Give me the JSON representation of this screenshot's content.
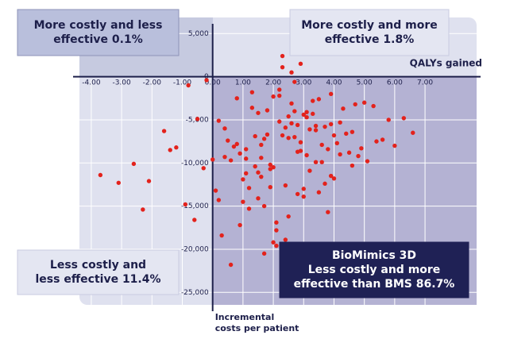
{
  "chart_data": {
    "type": "scatter",
    "x_label": "QALYs gained",
    "y_label": [
      "Incremental",
      "costs per patient"
    ],
    "color": "#e3221c",
    "xlim": [
      -4.6,
      8.7
    ],
    "ylim": [
      -27000,
      6500
    ],
    "xticks": [
      {
        "value": -4,
        "label": "-4.00"
      },
      {
        "value": -3,
        "label": "-3.00"
      },
      {
        "value": -2,
        "label": "-2.00"
      },
      {
        "value": -1,
        "label": "-1.00"
      },
      {
        "value": 0,
        "label": "0.00"
      },
      {
        "value": 1,
        "label": "1.00"
      },
      {
        "value": 2,
        "label": "2.00"
      },
      {
        "value": 3,
        "label": "3.00"
      },
      {
        "value": 4,
        "label": "4.00"
      },
      {
        "value": 5,
        "label": "5.00"
      },
      {
        "value": 6,
        "label": "6.00"
      },
      {
        "value": 7,
        "label": "7.00"
      }
    ],
    "yticks": [
      {
        "value": 5000,
        "label": "5,000"
      },
      0,
      {
        "value": -5000,
        "label": "-5,000"
      },
      {
        "value": -10000,
        "label": "-10,000"
      },
      {
        "value": -15000,
        "label": "-15,000"
      },
      {
        "value": -20000,
        "label": "-20,000"
      },
      {
        "value": -25000,
        "label": "-25,000"
      }
    ],
    "grid": true,
    "annotations": [
      {
        "lines": [
          "More costly and less",
          "effective"
        ],
        "pct": "0.1%"
      },
      {
        "lines": [
          "More costly and more",
          "effective"
        ],
        "pct": "1.8%"
      },
      {
        "lines": [
          "Less costly and",
          "less effective"
        ],
        "pct": "11.4%"
      },
      {
        "lines": [
          "BioMimics 3D",
          "Less costly and more",
          "effective than BMS"
        ],
        "pct": "86.7%"
      }
    ],
    "x": [
      2.3,
      1.5,
      3.1,
      0.8,
      2.9,
      4.2,
      1.1,
      2.6,
      3.8,
      0.4,
      1.9,
      2.2,
      3.4,
      5.1,
      -0.5,
      1.7,
      2.8,
      3.3,
      0.9,
      4.6,
      2.0,
      1.3,
      3.6,
      2.5,
      -1.2,
      0.2,
      4.0,
      2.7,
      1.6,
      3.0,
      5.6,
      -2.1,
      1.0,
      2.4,
      3.9,
      0.6,
      2.1,
      4.4,
      1.8,
      3.2,
      -0.8,
      2.9,
      1.4,
      3.7,
      6.3,
      0.1,
      2.6,
      4.8,
      1.2,
      3.5,
      -1.6,
      2.0,
      0.7,
      3.1,
      4.1,
      1.9,
      2.3,
      5.3,
      -0.3,
      1.5,
      2.8,
      3.9,
      0.5,
      2.2,
      4.5,
      1.7,
      3.4,
      -2.6,
      2.5,
      1.1,
      3.0,
      5.8,
      0.3,
      2.7,
      4.3,
      1.6,
      3.6,
      -0.9,
      2.1,
      0.8,
      3.3,
      4.9,
      1.3,
      2.4,
      -3.1,
      1.8,
      3.8,
      2.6,
      0.0,
      4.7,
      2.9,
      1.4,
      3.2,
      5.4,
      -1.4,
      2.2,
      0.6,
      3.5,
      6.6,
      1.0,
      2.0,
      4.2,
      1.7,
      3.1,
      -0.6,
      2.8,
      0.4,
      3.7,
      5.0,
      1.2,
      2.5,
      -2.3,
      1.9,
      4.0,
      2.3,
      0.9,
      3.4,
      6.0,
      1.5,
      2.7,
      -0.2,
      3.0,
      4.6,
      1.6,
      2.1,
      -3.7,
      0.2,
      3.9,
      2.4,
      1.1
    ],
    "values": [
      -6800,
      -4200,
      -9100,
      -2500,
      -7600,
      -5300,
      -11200,
      -3100,
      -8400,
      -6000,
      -12800,
      -1500,
      -5700,
      -9800,
      -4900,
      -7200,
      -13600,
      -2800,
      -8900,
      -6400,
      -10500,
      -3600,
      -7900,
      -16200,
      -8200,
      -5100,
      -11800,
      -600,
      -9400,
      -4400,
      -7300,
      -12100,
      -14500,
      -5900,
      -2000,
      -9700,
      -17800,
      -6600,
      -3900,
      -10900,
      -1000,
      -8600,
      -6900,
      -12400,
      -4800,
      -13200,
      -5400,
      -9200,
      -15300,
      -2600,
      -6300,
      -19200,
      -8100,
      -4100,
      -7700,
      -10200,
      1100,
      -3400,
      -10600,
      -14100,
      -5600,
      -11500,
      -7400,
      -2200,
      -8800,
      -20500,
      -6200,
      -10100,
      -4600,
      -9500,
      -13900,
      -5000,
      -18400,
      -7000,
      -3700,
      -11600,
      -9900,
      -14800,
      -16900,
      -7800,
      -4300,
      -8300,
      -1800,
      -12600,
      -12300,
      -6700,
      -15700,
      500,
      -9600,
      -3200,
      1500,
      -10400,
      -6100,
      -7500,
      -8500,
      -5200,
      -21800,
      -13400,
      -6500,
      -11900,
      -2300,
      -9000,
      -15000,
      -4700,
      -16600,
      -8700,
      -9300,
      -5800,
      -3000,
      -12900,
      -7100,
      -15400,
      -10700,
      -6800,
      2400,
      -17200,
      -9900,
      -8000,
      -11100,
      -4000,
      -400,
      -13000,
      -10300,
      -7900,
      -19600,
      -11400,
      -14300,
      -5500,
      -18900,
      -8400
    ]
  }
}
